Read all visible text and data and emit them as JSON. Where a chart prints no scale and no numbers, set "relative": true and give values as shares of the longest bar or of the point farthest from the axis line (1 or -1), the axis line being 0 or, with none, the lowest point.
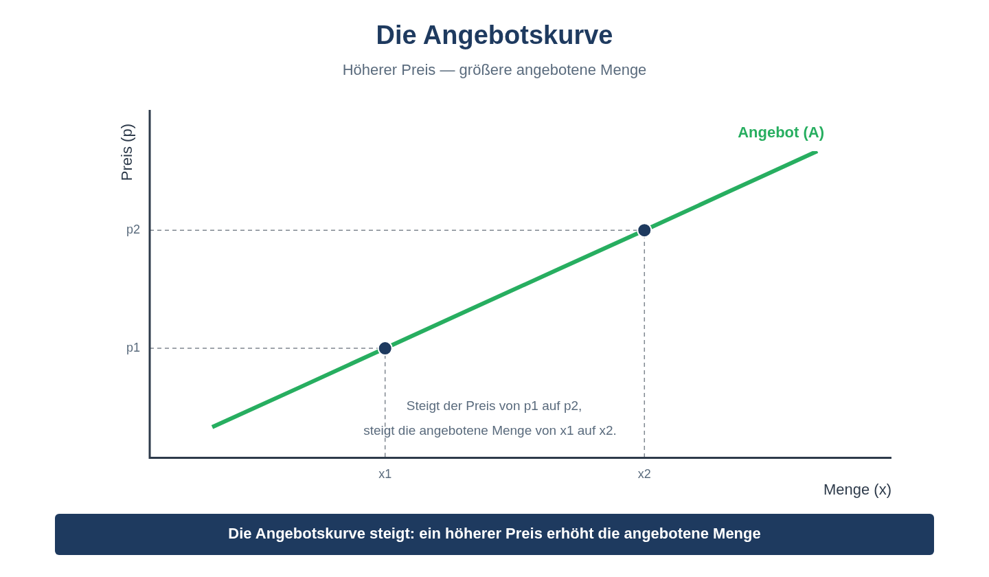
{
  "chart_data": {
    "type": "line",
    "title": "Die Angebotskurve",
    "subtitle": "Höherer Preis — größere angebotene Menge",
    "xlabel": "Menge (x)",
    "ylabel": "Preis (p)",
    "relative": true,
    "categories": [
      null,
      null,
      "x1",
      null,
      null,
      "x2",
      null,
      null
    ],
    "series": [
      {
        "name": "Angebot (A)",
        "color": "#27ae60",
        "values": [
          0.1,
          0.228,
          0.357,
          0.486,
          0.614,
          0.742,
          0.871,
          1
        ]
      },
      {
        "type": "scatter",
        "color": "#1e3a5f",
        "x": [
          "x1",
          "x2"
        ],
        "values": [
          0.357,
          0.742
        ],
        "marker": "circle"
      }
    ],
    "annotations": [
      "p1",
      "p2",
      "Steigt der Preis von p1 auf p2,",
      "steigt die angebotene Menge von x1 auf x2.",
      "Die Angebotskurve steigt: ein höherer Preis erhöht die angebotene Menge"
    ]
  }
}
